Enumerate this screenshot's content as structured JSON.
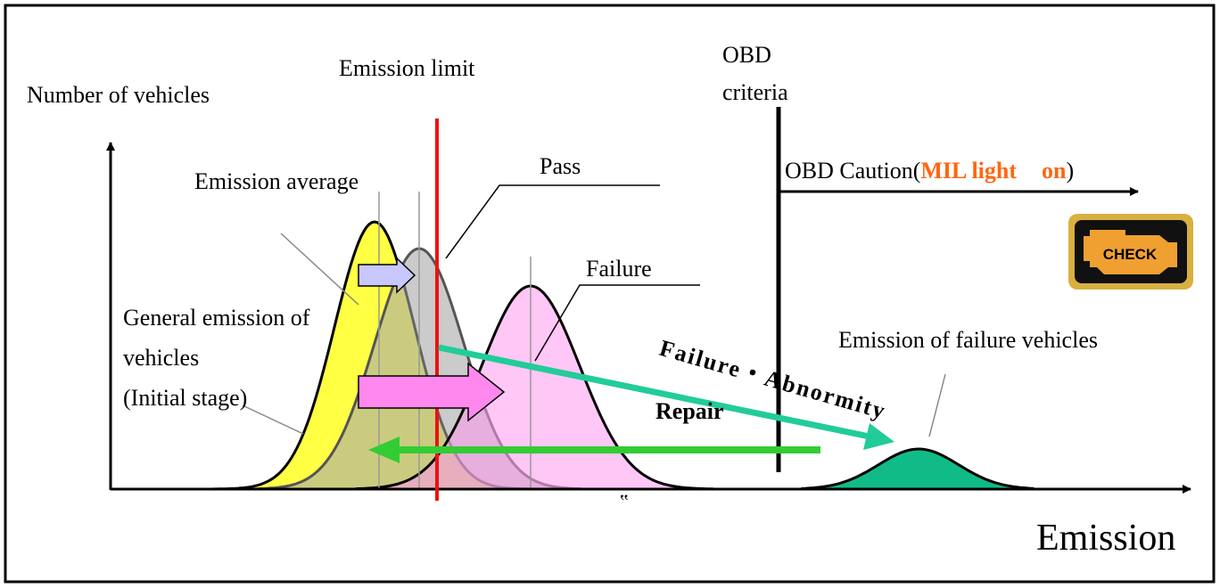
{
  "labels": {
    "emission_limit": "Emission limit",
    "obd_line1": "OBD",
    "obd_line2": "criteria",
    "y_axis": "Number of vehicles",
    "emission_average": "Emission average",
    "pass": "Pass",
    "caution_prefix": "OBD Caution(",
    "caution_mil": "MIL light",
    "caution_on": "on",
    "caution_suffix": ")",
    "failure": "Failure",
    "general_line1": "General emission of",
    "general_line2": "vehicles",
    "general_line3": "(Initial stage)",
    "failure_vehicles": "Emission of failure vehicles",
    "failure_abnormity": "Failure・Abnormity",
    "repair": "Repair",
    "x_axis": "Emission",
    "check": "CHECK",
    "stray_mark": "‟"
  }
}
